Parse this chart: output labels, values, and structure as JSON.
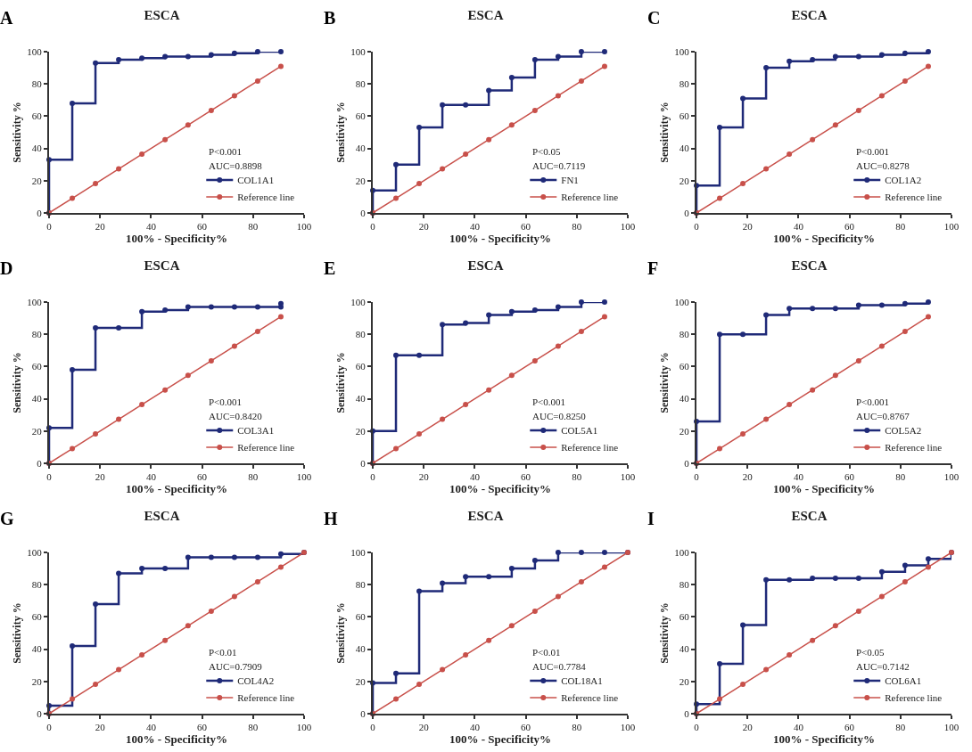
{
  "chart_data": [
    {
      "type": "line",
      "title": "ESCA",
      "xlabel": "100% - Specificity%",
      "ylabel": "Sensitivity %",
      "xlim": [
        0,
        100
      ],
      "ylim": [
        0,
        100
      ],
      "xticks": [
        0,
        20,
        40,
        60,
        80,
        100
      ],
      "yticks": [
        0,
        20,
        40,
        60,
        80,
        100
      ],
      "grid": false,
      "legend": "bottom right",
      "marker": "circle",
      "annotations": [
        "A",
        "P<0.001",
        "AUC=0.8898"
      ],
      "series": [
        {
          "name": "COL1A1",
          "type": "step",
          "color": "#1f2a78",
          "x": [
            0,
            0,
            9.1,
            18.2,
            27.3,
            36.4,
            45.5,
            54.5,
            63.6,
            72.7,
            81.8,
            90.9
          ],
          "values": [
            0,
            33,
            68,
            93,
            95,
            96,
            97,
            97,
            98,
            99,
            100,
            100
          ]
        },
        {
          "name": "Reference line",
          "type": "line",
          "color": "#c8504a",
          "x": [
            0,
            9.1,
            18.2,
            27.3,
            36.4,
            45.5,
            54.5,
            63.6,
            72.7,
            81.8,
            90.9
          ],
          "values": [
            0,
            9.1,
            18.2,
            27.3,
            36.4,
            45.5,
            54.5,
            63.6,
            72.7,
            81.8,
            90.9
          ]
        }
      ]
    },
    {
      "type": "line",
      "title": "ESCA",
      "xlabel": "100% - Specificity%",
      "ylabel": "Sensitivity %",
      "xlim": [
        0,
        100
      ],
      "ylim": [
        0,
        100
      ],
      "xticks": [
        0,
        20,
        40,
        60,
        80,
        100
      ],
      "yticks": [
        0,
        20,
        40,
        60,
        80,
        100
      ],
      "grid": false,
      "legend": "bottom right",
      "marker": "circle",
      "annotations": [
        "B",
        "P<0.05",
        "AUC=0.7119"
      ],
      "series": [
        {
          "name": "FN1",
          "type": "step",
          "color": "#1f2a78",
          "x": [
            0,
            0,
            9.1,
            18.2,
            27.3,
            36.4,
            45.5,
            54.5,
            63.6,
            72.7,
            81.8,
            90.9
          ],
          "values": [
            0,
            14,
            30,
            53,
            67,
            67,
            76,
            84,
            95,
            97,
            100,
            100
          ]
        },
        {
          "name": "Reference line",
          "type": "line",
          "color": "#c8504a",
          "x": [
            0,
            9.1,
            18.2,
            27.3,
            36.4,
            45.5,
            54.5,
            63.6,
            72.7,
            81.8,
            90.9
          ],
          "values": [
            0,
            9.1,
            18.2,
            27.3,
            36.4,
            45.5,
            54.5,
            63.6,
            72.7,
            81.8,
            90.9
          ]
        }
      ]
    },
    {
      "type": "line",
      "title": "ESCA",
      "xlabel": "100% - Specificity%",
      "ylabel": "Sensitivity %",
      "xlim": [
        0,
        100
      ],
      "ylim": [
        0,
        100
      ],
      "xticks": [
        0,
        20,
        40,
        60,
        80,
        100
      ],
      "yticks": [
        0,
        20,
        40,
        60,
        80,
        100
      ],
      "grid": false,
      "legend": "bottom right",
      "marker": "circle",
      "annotations": [
        "C",
        "P<0.001",
        "AUC=0.8278"
      ],
      "series": [
        {
          "name": "COL1A2",
          "type": "step",
          "color": "#1f2a78",
          "x": [
            0,
            0,
            9.1,
            18.2,
            27.3,
            36.4,
            45.5,
            54.5,
            63.6,
            72.7,
            81.8,
            90.9
          ],
          "values": [
            0,
            17,
            53,
            71,
            90,
            94,
            95,
            97,
            97,
            98,
            99,
            100
          ]
        },
        {
          "name": "Reference line",
          "type": "line",
          "color": "#c8504a",
          "x": [
            0,
            9.1,
            18.2,
            27.3,
            36.4,
            45.5,
            54.5,
            63.6,
            72.7,
            81.8,
            90.9
          ],
          "values": [
            0,
            9.1,
            18.2,
            27.3,
            36.4,
            45.5,
            54.5,
            63.6,
            72.7,
            81.8,
            90.9
          ]
        }
      ]
    },
    {
      "type": "line",
      "title": "ESCA",
      "xlabel": "100% - Specificity%",
      "ylabel": "Sensitivity %",
      "xlim": [
        0,
        100
      ],
      "ylim": [
        0,
        100
      ],
      "xticks": [
        0,
        20,
        40,
        60,
        80,
        100
      ],
      "yticks": [
        0,
        20,
        40,
        60,
        80,
        100
      ],
      "grid": false,
      "legend": "bottom right",
      "marker": "circle",
      "annotations": [
        "D",
        "P<0.001",
        "AUC=0.8420"
      ],
      "series": [
        {
          "name": "COL3A1",
          "type": "step",
          "color": "#1f2a78",
          "x": [
            0,
            0,
            9.1,
            18.2,
            27.3,
            36.4,
            45.5,
            54.5,
            63.6,
            72.7,
            81.8,
            90.9,
            90.9
          ],
          "values": [
            0,
            22,
            58,
            84,
            84,
            94,
            95,
            97,
            97,
            97,
            97,
            97,
            99
          ]
        },
        {
          "name": "Reference line",
          "type": "line",
          "color": "#c8504a",
          "x": [
            0,
            9.1,
            18.2,
            27.3,
            36.4,
            45.5,
            54.5,
            63.6,
            72.7,
            81.8,
            90.9
          ],
          "values": [
            0,
            9.1,
            18.2,
            27.3,
            36.4,
            45.5,
            54.5,
            63.6,
            72.7,
            81.8,
            90.9
          ]
        }
      ]
    },
    {
      "type": "line",
      "title": "ESCA",
      "xlabel": "100% - Specificity%",
      "ylabel": "Sensitivity %",
      "xlim": [
        0,
        100
      ],
      "ylim": [
        0,
        100
      ],
      "xticks": [
        0,
        20,
        40,
        60,
        80,
        100
      ],
      "yticks": [
        0,
        20,
        40,
        60,
        80,
        100
      ],
      "grid": false,
      "legend": "bottom right",
      "marker": "circle",
      "annotations": [
        "E",
        "P<0.001",
        "AUC=0.8250"
      ],
      "series": [
        {
          "name": "COL5A1",
          "type": "step",
          "color": "#1f2a78",
          "x": [
            0,
            0,
            9.1,
            18.2,
            27.3,
            36.4,
            45.5,
            54.5,
            63.6,
            72.7,
            81.8,
            90.9
          ],
          "values": [
            0,
            20,
            67,
            67,
            86,
            87,
            92,
            94,
            95,
            97,
            100,
            100
          ]
        },
        {
          "name": "Reference line",
          "type": "line",
          "color": "#c8504a",
          "x": [
            0,
            9.1,
            18.2,
            27.3,
            36.4,
            45.5,
            54.5,
            63.6,
            72.7,
            81.8,
            90.9
          ],
          "values": [
            0,
            9.1,
            18.2,
            27.3,
            36.4,
            45.5,
            54.5,
            63.6,
            72.7,
            81.8,
            90.9
          ]
        }
      ]
    },
    {
      "type": "line",
      "title": "ESCA",
      "xlabel": "100% - Specificity%",
      "ylabel": "Sensitivity %",
      "xlim": [
        0,
        100
      ],
      "ylim": [
        0,
        100
      ],
      "xticks": [
        0,
        20,
        40,
        60,
        80,
        100
      ],
      "yticks": [
        0,
        20,
        40,
        60,
        80,
        100
      ],
      "grid": false,
      "legend": "bottom right",
      "marker": "circle",
      "annotations": [
        "F",
        "P<0.001",
        "AUC=0.8767"
      ],
      "series": [
        {
          "name": "COL5A2",
          "type": "step",
          "color": "#1f2a78",
          "x": [
            0,
            0,
            9.1,
            18.2,
            27.3,
            36.4,
            45.5,
            54.5,
            63.6,
            72.7,
            81.8,
            90.9
          ],
          "values": [
            0,
            26,
            80,
            80,
            92,
            96,
            96,
            96,
            98,
            98,
            99,
            100
          ]
        },
        {
          "name": "Reference line",
          "type": "line",
          "color": "#c8504a",
          "x": [
            0,
            9.1,
            18.2,
            27.3,
            36.4,
            45.5,
            54.5,
            63.6,
            72.7,
            81.8,
            90.9
          ],
          "values": [
            0,
            9.1,
            18.2,
            27.3,
            36.4,
            45.5,
            54.5,
            63.6,
            72.7,
            81.8,
            90.9
          ]
        }
      ]
    },
    {
      "type": "line",
      "title": "ESCA",
      "xlabel": "100% - Specificity%",
      "ylabel": "Sensitivity %",
      "xlim": [
        0,
        100
      ],
      "ylim": [
        0,
        100
      ],
      "xticks": [
        0,
        20,
        40,
        60,
        80,
        100
      ],
      "yticks": [
        0,
        20,
        40,
        60,
        80,
        100
      ],
      "grid": false,
      "legend": "bottom right",
      "marker": "circle",
      "annotations": [
        "G",
        "P<0.01",
        "AUC=0.7909"
      ],
      "series": [
        {
          "name": "COL4A2",
          "type": "step",
          "color": "#1f2a78",
          "x": [
            0,
            0,
            9.1,
            18.2,
            27.3,
            36.4,
            45.5,
            54.5,
            63.6,
            72.7,
            81.8,
            90.9,
            100
          ],
          "values": [
            0,
            5,
            42,
            68,
            87,
            90,
            90,
            97,
            97,
            97,
            97,
            99,
            100
          ]
        },
        {
          "name": "Reference line",
          "type": "line",
          "color": "#c8504a",
          "x": [
            0,
            9.1,
            18.2,
            27.3,
            36.4,
            45.5,
            54.5,
            63.6,
            72.7,
            81.8,
            90.9,
            100
          ],
          "values": [
            0,
            9.1,
            18.2,
            27.3,
            36.4,
            45.5,
            54.5,
            63.6,
            72.7,
            81.8,
            90.9,
            100
          ]
        }
      ]
    },
    {
      "type": "line",
      "title": "ESCA",
      "xlabel": "100% - Specificity%",
      "ylabel": "Sensitivity %",
      "xlim": [
        0,
        100
      ],
      "ylim": [
        0,
        100
      ],
      "xticks": [
        0,
        20,
        40,
        60,
        80,
        100
      ],
      "yticks": [
        0,
        20,
        40,
        60,
        80,
        100
      ],
      "grid": false,
      "legend": "bottom right",
      "marker": "circle",
      "annotations": [
        "H",
        "P<0.01",
        "AUC=0.7784"
      ],
      "series": [
        {
          "name": "COL18A1",
          "type": "step",
          "color": "#1f2a78",
          "x": [
            0,
            0,
            9.1,
            18.2,
            27.3,
            36.4,
            45.5,
            54.5,
            63.6,
            72.7,
            81.8,
            90.9,
            100
          ],
          "values": [
            0,
            19,
            25,
            76,
            81,
            85,
            85,
            90,
            95,
            100,
            100,
            100,
            100
          ]
        },
        {
          "name": "Reference line",
          "type": "line",
          "color": "#c8504a",
          "x": [
            0,
            9.1,
            18.2,
            27.3,
            36.4,
            45.5,
            54.5,
            63.6,
            72.7,
            81.8,
            90.9,
            100
          ],
          "values": [
            0,
            9.1,
            18.2,
            27.3,
            36.4,
            45.5,
            54.5,
            63.6,
            72.7,
            81.8,
            90.9,
            100
          ]
        }
      ]
    },
    {
      "type": "line",
      "title": "ESCA",
      "xlabel": "100% - Specificity%",
      "ylabel": "Sensitivity %",
      "xlim": [
        0,
        100
      ],
      "ylim": [
        0,
        100
      ],
      "xticks": [
        0,
        20,
        40,
        60,
        80,
        100
      ],
      "yticks": [
        0,
        20,
        40,
        60,
        80,
        100
      ],
      "grid": false,
      "legend": "bottom right",
      "marker": "circle",
      "annotations": [
        "I",
        "P<0.05",
        "AUC=0.7142"
      ],
      "series": [
        {
          "name": "COL6A1",
          "type": "step",
          "color": "#1f2a78",
          "x": [
            0,
            0,
            9.1,
            18.2,
            27.3,
            36.4,
            45.5,
            54.5,
            63.6,
            72.7,
            81.8,
            90.9,
            100
          ],
          "values": [
            0,
            6,
            31,
            55,
            83,
            83,
            84,
            84,
            84,
            88,
            92,
            96,
            100
          ]
        },
        {
          "name": "Reference line",
          "type": "line",
          "color": "#c8504a",
          "x": [
            0,
            9.1,
            18.2,
            27.3,
            36.4,
            45.5,
            54.5,
            63.6,
            72.7,
            81.8,
            90.9,
            100
          ],
          "values": [
            0,
            9.1,
            18.2,
            27.3,
            36.4,
            45.5,
            54.5,
            63.6,
            72.7,
            81.8,
            90.9,
            100
          ]
        }
      ]
    }
  ]
}
